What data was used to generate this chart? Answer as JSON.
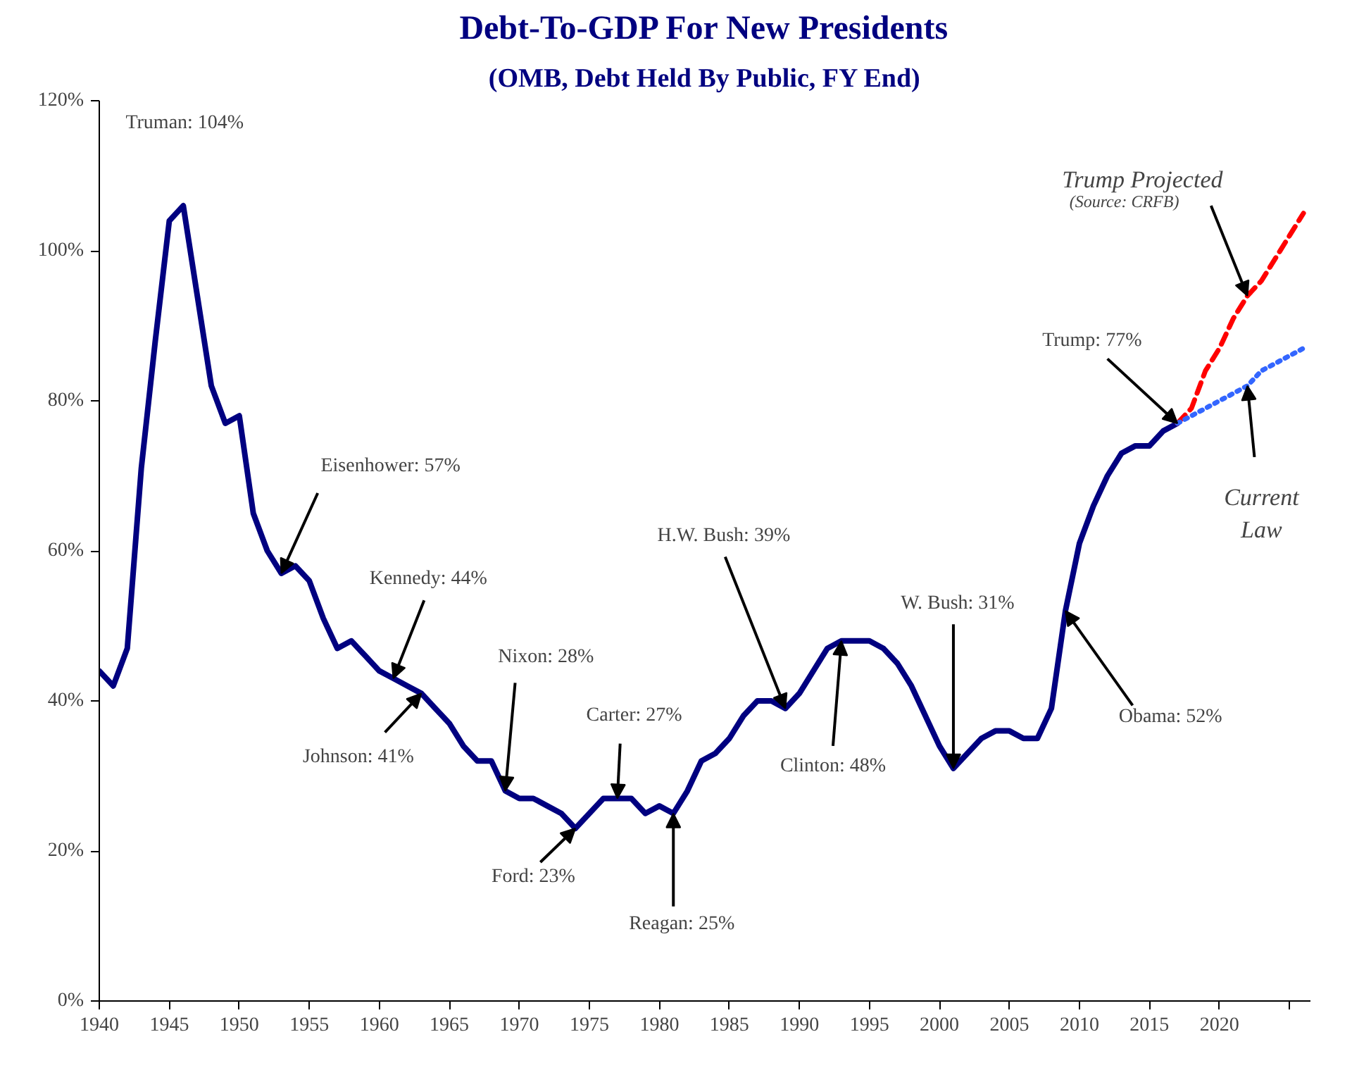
{
  "chart_data": {
    "type": "line",
    "title": "Debt-To-GDP For New Presidents",
    "subtitle": "(OMB, Debt Held By Public, FY End)",
    "xlim": [
      1940,
      2026.5
    ],
    "ylim": [
      0,
      120
    ],
    "xticks": [
      1940,
      1945,
      1950,
      1955,
      1960,
      1965,
      1970,
      1975,
      1980,
      1985,
      1990,
      1995,
      2000,
      2005,
      2010,
      2015,
      2020,
      {
        "value": 2025,
        "label": null
      }
    ],
    "yticks": [
      {
        "value": 0,
        "label": "0%"
      },
      {
        "value": 20,
        "label": "20%"
      },
      {
        "value": 40,
        "label": "40%"
      },
      {
        "value": 60,
        "label": "60%"
      },
      {
        "value": 80,
        "label": "80%"
      },
      {
        "value": 100,
        "label": "100%"
      },
      {
        "value": 120,
        "label": "120%"
      }
    ],
    "grid": false,
    "series": [
      {
        "color": "#000080",
        "line_style": "solid",
        "x": [
          1940,
          1941,
          1942,
          1943,
          1944,
          1945,
          1946,
          1947,
          1948,
          1949,
          1950,
          1951,
          1952,
          1953,
          1954,
          1955,
          1956,
          1957,
          1958,
          1959,
          1960,
          1961,
          1962,
          1963,
          1964,
          1965,
          1966,
          1967,
          1968,
          1969,
          1970,
          1971,
          1972,
          1973,
          1974,
          1975,
          1976,
          1977,
          1978,
          1979,
          1980,
          1981,
          1982,
          1983,
          1984,
          1985,
          1986,
          1987,
          1988,
          1989,
          1990,
          1991,
          1992,
          1993,
          1994,
          1995,
          1996,
          1997,
          1998,
          1999,
          2000,
          2001,
          2002,
          2003,
          2004,
          2005,
          2006,
          2007,
          2008,
          2009,
          2010,
          2011,
          2012,
          2013,
          2014,
          2015,
          2016,
          2017
        ],
        "values": [
          44,
          42,
          47,
          71,
          88,
          104,
          106,
          94,
          82,
          77,
          78,
          65,
          60,
          57,
          58,
          56,
          51,
          47,
          48,
          46,
          44,
          43,
          42,
          41,
          39,
          37,
          34,
          32,
          32,
          28,
          27,
          27,
          26,
          25,
          23,
          25,
          27,
          27,
          27,
          25,
          26,
          25,
          28,
          32,
          33,
          35,
          38,
          40,
          40,
          39,
          41,
          44,
          47,
          48,
          48,
          48,
          47,
          45,
          42,
          38,
          34,
          31,
          33,
          35,
          36,
          36,
          35,
          35,
          39,
          52,
          61,
          66,
          70,
          73,
          74,
          74,
          76,
          77
        ]
      },
      {
        "color": "#ff0000",
        "line_style": "dashed",
        "x": [
          2017,
          2018,
          2019,
          2020,
          2021,
          2022,
          2023,
          2024,
          2025,
          2026
        ],
        "values": [
          77,
          79,
          84,
          87,
          91,
          94,
          96,
          99,
          102,
          105
        ]
      },
      {
        "color": "#3366ff",
        "line_style": "dotted",
        "x": [
          2017,
          2018,
          2019,
          2020,
          2021,
          2022,
          2023,
          2024,
          2025,
          2026
        ],
        "values": [
          77,
          78,
          79,
          80,
          81,
          82,
          84,
          85,
          86,
          87
        ]
      }
    ],
    "annotations": [
      "Truman: 104%",
      {
        "text": "Eisenhower: 57%",
        "x": 1953,
        "y": 57
      },
      {
        "text": "Kennedy: 44%",
        "x": 1961,
        "y": 43
      },
      {
        "text": "Johnson: 41%",
        "x": 1963,
        "y": 41
      },
      {
        "text": "Nixon: 28%",
        "x": 1969,
        "y": 28
      },
      {
        "text": "Ford: 23%",
        "x": 1974,
        "y": 23
      },
      {
        "text": "Carter: 27%",
        "x": 1977,
        "y": 27
      },
      {
        "text": "Reagan: 25%",
        "x": 1981,
        "y": 25
      },
      {
        "text": "H.W. Bush: 39%",
        "x": 1989,
        "y": 39
      },
      {
        "text": "Clinton: 48%",
        "x": 1993,
        "y": 48
      },
      {
        "text": "W. Bush: 31%",
        "x": 2001,
        "y": 31
      },
      {
        "text": "Obama: 52%",
        "x": 2009,
        "y": 52
      },
      {
        "text": "Trump: 77%",
        "x": 2017,
        "y": 77
      },
      {
        "text": "Trump Projected",
        "x": 2022,
        "y": 94
      },
      "(Source: CRFB)",
      {
        "text": "Current\nLaw",
        "x": 2022,
        "y": 82
      }
    ]
  }
}
